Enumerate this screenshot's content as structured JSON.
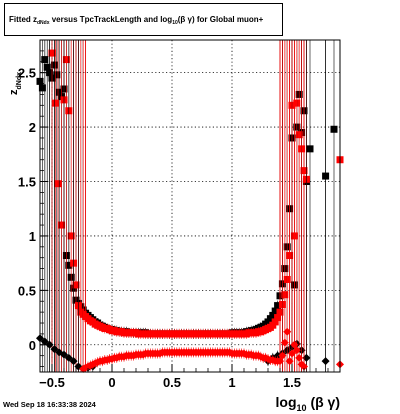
{
  "title": {
    "part1": "Fitted  z",
    "sub1": "dNdx",
    "part2": "  versus TpcTrackLength and log",
    "sub2": "10",
    "part3": "(β  γ) for Global muon+"
  },
  "datestamp": "Wed Sep 18 16:33:38 2024",
  "colors": {
    "black": "#000000",
    "red": "#ff0000",
    "grid": "#000000"
  },
  "chart_data": {
    "type": "scatter",
    "title": "Fitted z_dNdx versus TpcTrackLength and log10(β γ) for Global muon+",
    "xlabel": "log10(β γ)",
    "ylabel": "z_dNdx",
    "xlim": [
      -0.6,
      1.9
    ],
    "ylim": [
      -0.25,
      2.8
    ],
    "grid": true,
    "x_ticks": [
      -0.5,
      0,
      0.5,
      1,
      1.5
    ],
    "x_tick_labels": [
      "−0.5",
      "0",
      "0.5",
      "1",
      "1.5"
    ],
    "y_ticks": [
      0,
      0.5,
      1,
      1.5,
      2,
      2.5
    ],
    "y_tick_labels": [
      "0",
      "0.5",
      "1",
      "1.5",
      "2",
      "2.5"
    ],
    "series": [
      {
        "marker": "square",
        "color": "#000000",
        "x": [
          -0.6,
          -0.58,
          -0.56,
          -0.54,
          -0.52,
          -0.5,
          -0.48,
          -0.46,
          -0.44,
          -0.42,
          -0.4,
          -0.38,
          -0.36,
          -0.34,
          -0.32,
          -0.3,
          -0.28,
          -0.26,
          -0.24,
          -0.22,
          -0.2,
          -0.18,
          -0.16,
          -0.14,
          -0.12,
          -0.1,
          -0.08,
          -0.06,
          -0.04,
          -0.02,
          0,
          0.02,
          0.04,
          0.06,
          0.08,
          0.1,
          0.12,
          0.14,
          0.16,
          0.18,
          0.2,
          0.22,
          0.24,
          0.26,
          0.28,
          0.3,
          0.32,
          0.34,
          0.36,
          0.38,
          0.4,
          0.42,
          0.44,
          0.46,
          0.48,
          0.5,
          0.52,
          0.54,
          0.56,
          0.58,
          0.6,
          0.62,
          0.64,
          0.66,
          0.68,
          0.7,
          0.72,
          0.74,
          0.76,
          0.78,
          0.8,
          0.82,
          0.84,
          0.86,
          0.88,
          0.9,
          0.92,
          0.94,
          0.96,
          0.98,
          1,
          1.02,
          1.04,
          1.06,
          1.08,
          1.1,
          1.12,
          1.14,
          1.16,
          1.18,
          1.2,
          1.22,
          1.24,
          1.26,
          1.28,
          1.3,
          1.32,
          1.34,
          1.36,
          1.38,
          1.4,
          1.42,
          1.44,
          1.46,
          1.48,
          1.5,
          1.52,
          1.54,
          1.56,
          1.58,
          1.6,
          1.62,
          1.65,
          1.78,
          1.85
        ],
        "y": [
          2.42,
          2.36,
          2.62,
          2.55,
          2.5,
          2.45,
          2.57,
          2.48,
          2.32,
          2.28,
          2.35,
          0.82,
          0.73,
          0.62,
          0.52,
          0.41,
          0.38,
          0.35,
          0.32,
          0.29,
          0.27,
          0.25,
          0.23,
          0.21,
          0.2,
          0.18,
          0.17,
          0.16,
          0.15,
          0.14,
          0.14,
          0.13,
          0.13,
          0.12,
          0.12,
          0.12,
          0.12,
          0.11,
          0.11,
          0.11,
          0.11,
          0.11,
          0.11,
          0.11,
          0.11,
          0.1,
          0.1,
          0.1,
          0.1,
          0.1,
          0.1,
          0.1,
          0.1,
          0.1,
          0.1,
          0.1,
          0.1,
          0.1,
          0.1,
          0.1,
          0.1,
          0.1,
          0.1,
          0.1,
          0.1,
          0.1,
          0.1,
          0.1,
          0.1,
          0.1,
          0.1,
          0.1,
          0.1,
          0.1,
          0.1,
          0.1,
          0.1,
          0.1,
          0.1,
          0.1,
          0.11,
          0.11,
          0.11,
          0.11,
          0.11,
          0.11,
          0.12,
          0.12,
          0.13,
          0.13,
          0.14,
          0.15,
          0.16,
          0.17,
          0.19,
          0.21,
          0.24,
          0.27,
          0.31,
          0.36,
          0.45,
          0.56,
          0.7,
          0.9,
          1.25,
          1.9,
          0.55,
          2.0,
          2.3,
          1.95,
          2.15,
          1.5,
          1.8,
          1.55,
          1.98
        ]
      },
      {
        "marker": "square",
        "color": "#ff0000",
        "x": [
          -0.5,
          -0.47,
          -0.45,
          -0.42,
          -0.4,
          -0.38,
          -0.36,
          -0.34,
          -0.32,
          -0.3,
          -0.28,
          -0.26,
          -0.24,
          -0.22,
          -0.2,
          -0.18,
          -0.16,
          -0.14,
          -0.12,
          -0.1,
          -0.08,
          -0.06,
          -0.04,
          -0.02,
          0,
          0.02,
          0.04,
          0.06,
          0.08,
          0.1,
          0.12,
          0.14,
          0.16,
          0.18,
          0.2,
          0.22,
          0.24,
          0.26,
          0.28,
          0.3,
          0.32,
          0.34,
          0.36,
          0.38,
          0.4,
          0.42,
          0.44,
          0.46,
          0.48,
          0.5,
          0.52,
          0.54,
          0.56,
          0.58,
          0.6,
          0.62,
          0.64,
          0.66,
          0.68,
          0.7,
          0.72,
          0.74,
          0.76,
          0.78,
          0.8,
          0.82,
          0.84,
          0.86,
          0.88,
          0.9,
          0.92,
          0.94,
          0.96,
          0.98,
          1,
          1.02,
          1.04,
          1.06,
          1.08,
          1.1,
          1.12,
          1.14,
          1.16,
          1.18,
          1.2,
          1.22,
          1.24,
          1.26,
          1.28,
          1.3,
          1.32,
          1.34,
          1.36,
          1.38,
          1.4,
          1.42,
          1.44,
          1.46,
          1.48,
          1.5,
          1.52,
          1.54,
          1.56,
          1.58,
          1.6,
          1.62,
          1.9
        ],
        "y": [
          2.68,
          2.22,
          1.48,
          1.1,
          2.25,
          2.62,
          2.15,
          1.0,
          0.75,
          0.55,
          0.36,
          0.3,
          0.28,
          0.26,
          0.24,
          0.22,
          0.21,
          0.19,
          0.18,
          0.17,
          0.16,
          0.15,
          0.15,
          0.14,
          0.13,
          0.13,
          0.12,
          0.12,
          0.12,
          0.11,
          0.11,
          0.11,
          0.11,
          0.11,
          0.11,
          0.1,
          0.1,
          0.1,
          0.1,
          0.1,
          0.1,
          0.1,
          0.1,
          0.1,
          0.1,
          0.1,
          0.1,
          0.1,
          0.1,
          0.1,
          0.1,
          0.1,
          0.1,
          0.1,
          0.1,
          0.1,
          0.1,
          0.1,
          0.1,
          0.1,
          0.1,
          0.1,
          0.1,
          0.1,
          0.1,
          0.1,
          0.1,
          0.1,
          0.1,
          0.1,
          0.1,
          0.1,
          0.1,
          0.1,
          0.1,
          0.1,
          0.1,
          0.1,
          0.1,
          0.1,
          0.1,
          0.11,
          0.11,
          0.11,
          0.11,
          0.12,
          0.12,
          0.13,
          0.14,
          0.15,
          0.16,
          0.18,
          0.21,
          0.25,
          0.3,
          0.37,
          0.46,
          0.6,
          0.82,
          2.2,
          1.0,
          2.22,
          1.93,
          1.8,
          1.6,
          1.52,
          1.7
        ]
      },
      {
        "marker": "diamond",
        "color": "#000000",
        "x": [
          -0.6,
          -0.56,
          -0.52,
          -0.48,
          -0.44,
          -0.4,
          -0.36,
          -0.32,
          -0.28,
          -0.24,
          -0.2,
          -0.16,
          1.3,
          1.34,
          1.38,
          1.42,
          1.46,
          1.5,
          1.54,
          1.58,
          1.62,
          1.78
        ],
        "y": [
          0.06,
          0.03,
          0.0,
          -0.04,
          -0.07,
          -0.09,
          -0.12,
          -0.15,
          -0.2,
          -0.22,
          -0.21,
          -0.2,
          -0.15,
          -0.12,
          -0.1,
          -0.08,
          -0.05,
          -0.02,
          0.01,
          -0.05,
          -0.12,
          -0.15
        ]
      },
      {
        "marker": "diamond",
        "color": "#ff0000",
        "x": [
          -0.24,
          -0.22,
          -0.2,
          -0.18,
          -0.16,
          -0.14,
          -0.12,
          -0.1,
          -0.08,
          -0.06,
          -0.04,
          -0.02,
          0,
          0.02,
          0.04,
          0.06,
          0.08,
          0.1,
          0.12,
          0.14,
          0.16,
          0.18,
          0.2,
          0.22,
          0.24,
          0.26,
          0.28,
          0.3,
          0.32,
          0.34,
          0.36,
          0.38,
          0.4,
          0.42,
          0.44,
          0.46,
          0.48,
          0.5,
          0.52,
          0.54,
          0.56,
          0.58,
          0.6,
          0.62,
          0.64,
          0.66,
          0.68,
          0.7,
          0.72,
          0.74,
          0.76,
          0.78,
          0.8,
          0.82,
          0.84,
          0.86,
          0.88,
          0.9,
          0.92,
          0.94,
          0.96,
          0.98,
          1,
          1.02,
          1.04,
          1.06,
          1.08,
          1.1,
          1.12,
          1.14,
          1.16,
          1.18,
          1.2,
          1.22,
          1.24,
          1.26,
          1.28,
          1.3,
          1.32,
          1.34,
          1.36,
          1.38,
          1.4,
          1.42,
          1.44,
          1.46,
          1.48,
          1.5,
          1.52,
          1.54,
          1.56,
          1.58,
          1.6,
          1.9
        ],
        "y": [
          -0.22,
          -0.21,
          -0.2,
          -0.19,
          -0.18,
          -0.17,
          -0.16,
          -0.15,
          -0.15,
          -0.14,
          -0.14,
          -0.13,
          -0.13,
          -0.12,
          -0.12,
          -0.11,
          -0.11,
          -0.11,
          -0.1,
          -0.1,
          -0.1,
          -0.1,
          -0.09,
          -0.09,
          -0.09,
          -0.09,
          -0.08,
          -0.08,
          -0.08,
          -0.08,
          -0.08,
          -0.08,
          -0.08,
          -0.07,
          -0.07,
          -0.07,
          -0.07,
          -0.07,
          -0.07,
          -0.07,
          -0.07,
          -0.07,
          -0.07,
          -0.07,
          -0.07,
          -0.07,
          -0.07,
          -0.07,
          -0.07,
          -0.07,
          -0.07,
          -0.07,
          -0.07,
          -0.07,
          -0.07,
          -0.07,
          -0.07,
          -0.07,
          -0.07,
          -0.07,
          -0.07,
          -0.07,
          -0.08,
          -0.08,
          -0.08,
          -0.08,
          -0.08,
          -0.08,
          -0.09,
          -0.09,
          -0.09,
          -0.1,
          -0.1,
          -0.1,
          -0.11,
          -0.12,
          -0.12,
          -0.13,
          -0.14,
          -0.14,
          -0.15,
          -0.15,
          -0.15,
          -0.1,
          0.02,
          0.12,
          -0.15,
          -0.08,
          0.0,
          -0.05,
          -0.12,
          -0.18,
          -0.2,
          -0.18
        ]
      }
    ]
  }
}
